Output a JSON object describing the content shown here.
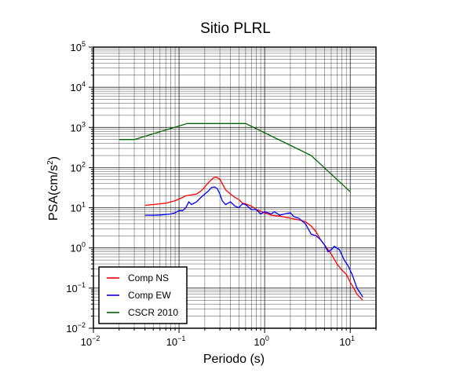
{
  "chart_data": {
    "type": "line",
    "title": "Sitio PLRL",
    "xlabel": "Periodo (s)",
    "ylabel_base": "PSA(cm/s",
    "ylabel_exp": "2",
    "ylabel_end": ")",
    "x_scale": "log",
    "y_scale": "log",
    "xlim": [
      0.01,
      20
    ],
    "ylim": [
      0.01,
      100000
    ],
    "grid": true,
    "legend_position": "bottom-left",
    "x_ticks": [
      {
        "base": "10",
        "exp": "−2",
        "value": 0.01
      },
      {
        "base": "10",
        "exp": "−1",
        "value": 0.1
      },
      {
        "base": "10",
        "exp": "0",
        "value": 1
      },
      {
        "base": "10",
        "exp": "1",
        "value": 10
      }
    ],
    "y_ticks": [
      {
        "base": "10",
        "exp": "−2",
        "value": 0.01
      },
      {
        "base": "10",
        "exp": "−1",
        "value": 0.1
      },
      {
        "base": "10",
        "exp": "0",
        "value": 1
      },
      {
        "base": "10",
        "exp": "1",
        "value": 10
      },
      {
        "base": "10",
        "exp": "2",
        "value": 100
      },
      {
        "base": "10",
        "exp": "3",
        "value": 1000
      },
      {
        "base": "10",
        "exp": "4",
        "value": 10000
      },
      {
        "base": "10",
        "exp": "5",
        "value": 100000
      }
    ],
    "series": [
      {
        "name": "Comp NS",
        "color": "#ff0000",
        "points": [
          [
            0.04,
            11.5
          ],
          [
            0.05,
            12
          ],
          [
            0.06,
            12.5
          ],
          [
            0.07,
            13
          ],
          [
            0.08,
            14
          ],
          [
            0.09,
            15
          ],
          [
            0.1,
            16.5
          ],
          [
            0.11,
            18
          ],
          [
            0.12,
            20
          ],
          [
            0.14,
            21
          ],
          [
            0.16,
            22
          ],
          [
            0.18,
            26
          ],
          [
            0.2,
            33
          ],
          [
            0.22,
            42
          ],
          [
            0.25,
            55
          ],
          [
            0.27,
            58
          ],
          [
            0.3,
            52
          ],
          [
            0.32,
            40
          ],
          [
            0.35,
            28
          ],
          [
            0.4,
            22
          ],
          [
            0.45,
            18
          ],
          [
            0.5,
            16
          ],
          [
            0.55,
            13
          ],
          [
            0.6,
            12.5
          ],
          [
            0.7,
            11
          ],
          [
            0.8,
            9
          ],
          [
            1.0,
            7.5
          ],
          [
            1.2,
            6.5
          ],
          [
            1.5,
            6.2
          ],
          [
            2.0,
            5.5
          ],
          [
            2.5,
            5.0
          ],
          [
            3.0,
            4.5
          ],
          [
            3.5,
            3.5
          ],
          [
            4.0,
            2.5
          ],
          [
            4.5,
            1.6
          ],
          [
            5.0,
            1.2
          ],
          [
            6.0,
            0.7
          ],
          [
            7.0,
            0.4
          ],
          [
            8.0,
            0.28
          ],
          [
            9.0,
            0.22
          ],
          [
            10.0,
            0.14
          ],
          [
            11.0,
            0.1
          ],
          [
            12.0,
            0.07
          ],
          [
            14.0,
            0.05
          ]
        ]
      },
      {
        "name": "Comp EW",
        "color": "#0000ff",
        "points": [
          [
            0.04,
            6.5
          ],
          [
            0.05,
            6.5
          ],
          [
            0.06,
            6.6
          ],
          [
            0.07,
            6.8
          ],
          [
            0.08,
            7
          ],
          [
            0.09,
            7.5
          ],
          [
            0.1,
            8.5
          ],
          [
            0.11,
            8.5
          ],
          [
            0.12,
            10
          ],
          [
            0.13,
            14
          ],
          [
            0.14,
            12
          ],
          [
            0.16,
            14
          ],
          [
            0.18,
            18
          ],
          [
            0.2,
            22
          ],
          [
            0.22,
            26
          ],
          [
            0.24,
            32
          ],
          [
            0.26,
            33
          ],
          [
            0.28,
            30
          ],
          [
            0.3,
            22
          ],
          [
            0.32,
            15
          ],
          [
            0.35,
            12
          ],
          [
            0.4,
            14
          ],
          [
            0.45,
            11
          ],
          [
            0.5,
            10
          ],
          [
            0.55,
            12.5
          ],
          [
            0.6,
            12
          ],
          [
            0.7,
            9
          ],
          [
            0.8,
            9
          ],
          [
            0.9,
            7
          ],
          [
            1.0,
            8
          ],
          [
            1.2,
            7
          ],
          [
            1.3,
            8
          ],
          [
            1.5,
            6.5
          ],
          [
            1.7,
            7
          ],
          [
            2.0,
            7.5
          ],
          [
            2.2,
            6
          ],
          [
            2.5,
            5.5
          ],
          [
            3.0,
            4
          ],
          [
            3.5,
            2.2
          ],
          [
            4.0,
            2
          ],
          [
            4.5,
            1.6
          ],
          [
            5.0,
            1.2
          ],
          [
            5.5,
            0.8
          ],
          [
            6.0,
            0.9
          ],
          [
            6.5,
            1.1
          ],
          [
            7.5,
            0.9
          ],
          [
            8.5,
            0.5
          ],
          [
            9.5,
            0.35
          ],
          [
            10.5,
            0.22
          ],
          [
            12.0,
            0.1
          ],
          [
            14.0,
            0.06
          ]
        ]
      },
      {
        "name": "CSCR 2010",
        "color": "#006400",
        "points": [
          [
            0.02,
            500
          ],
          [
            0.03,
            500
          ],
          [
            0.125,
            1250
          ],
          [
            0.6,
            1250
          ],
          [
            3.5,
            200
          ],
          [
            10,
            25
          ]
        ]
      }
    ]
  }
}
